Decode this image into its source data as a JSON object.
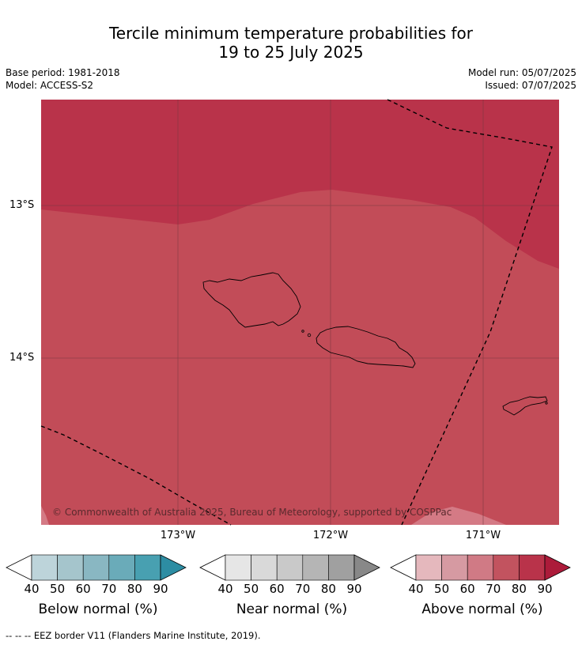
{
  "title": {
    "line1": "Tercile minimum temperature probabilities for",
    "line2": "19 to 25 July 2025"
  },
  "meta": {
    "base_period": "Base period: 1981-2018",
    "model": "Model: ACCESS-S2",
    "model_run": "Model run: 05/07/2025",
    "issued": "Issued: 07/07/2025"
  },
  "map": {
    "lat_labels": [
      "13°S",
      "14°S"
    ],
    "lon_labels": [
      "173°W",
      "172°W",
      "171°W"
    ],
    "copyright": "© Commonwealth of Australia 2025, Bureau of Meteorology, supported by COSPPac",
    "colors": {
      "above_70": "#c24c58",
      "above_80": "#b9334a",
      "above_60": "#d47a85",
      "gridline": "#7a3a40",
      "coast": "#000000"
    }
  },
  "colorbars": [
    {
      "label": "Below normal (%)",
      "ticks": [
        "40",
        "50",
        "60",
        "70",
        "80",
        "90"
      ],
      "colors": [
        "#ffffff",
        "#bdd4da",
        "#a5c5cc",
        "#89b7c2",
        "#6aabb9",
        "#48a0b1",
        "#2d8da3"
      ]
    },
    {
      "label": "Near normal (%)",
      "ticks": [
        "40",
        "50",
        "60",
        "70",
        "80",
        "90"
      ],
      "colors": [
        "#ffffff",
        "#e6e6e6",
        "#d9d9d9",
        "#c9c9c9",
        "#b5b5b5",
        "#a0a0a0",
        "#888888"
      ]
    },
    {
      "label": "Above normal (%)",
      "ticks": [
        "40",
        "50",
        "60",
        "70",
        "80",
        "90"
      ],
      "colors": [
        "#ffffff",
        "#e5b8bd",
        "#d69aa2",
        "#d07a85",
        "#c2535f",
        "#b9334a",
        "#ac1b3a"
      ]
    }
  ],
  "footer": "--  --  -- EEZ border V11 (Flanders Marine Institute, 2019)."
}
